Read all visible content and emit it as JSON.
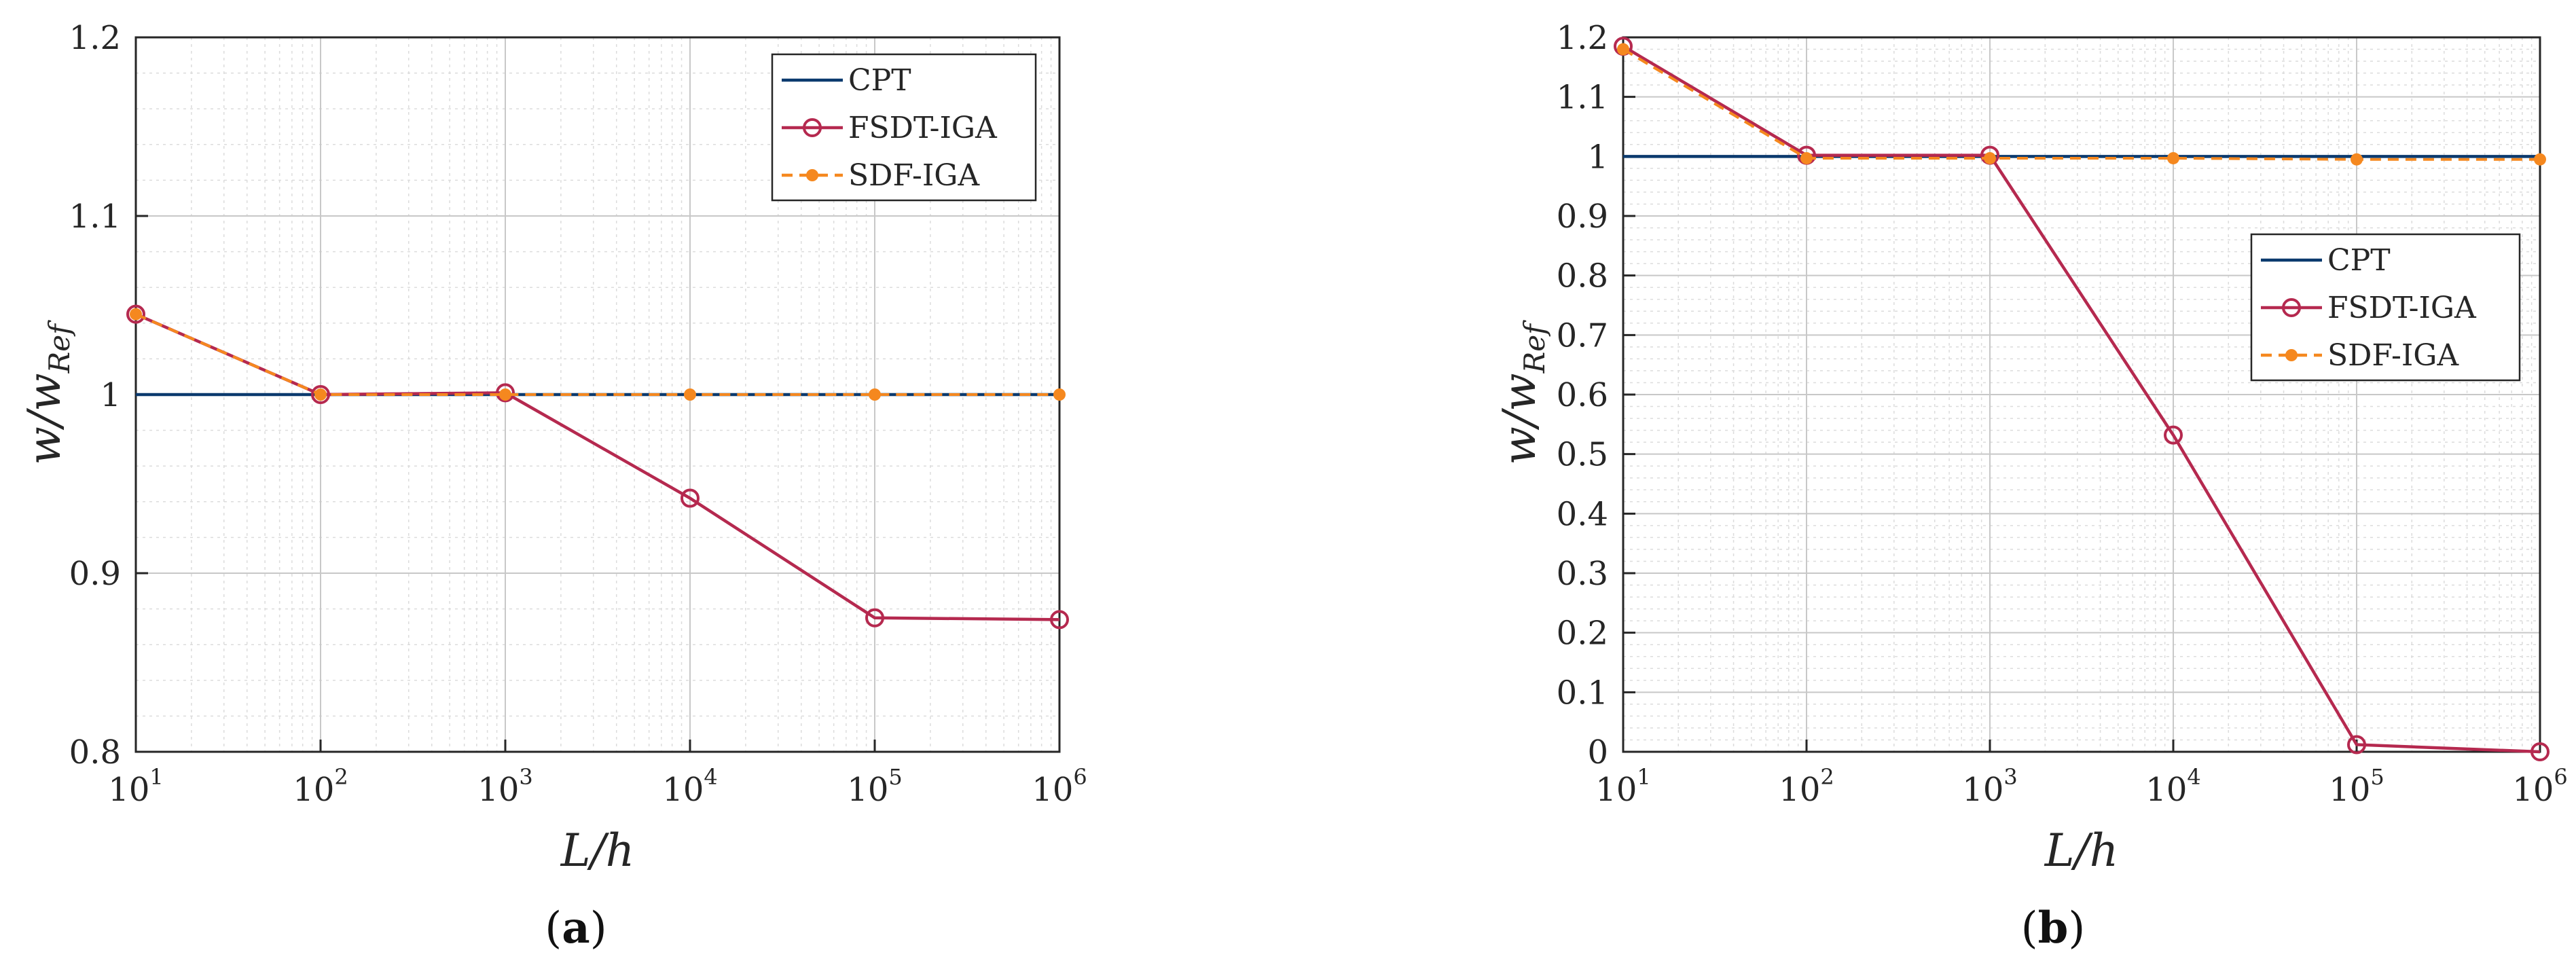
{
  "colors": {
    "cpt": "#0b3a6e",
    "fsdt": "#b5294f",
    "sdf": "#f5881f",
    "grid": "#dcdcdc",
    "axis": "#262626"
  },
  "chart_data": [
    {
      "type": "line",
      "caption_open": "(",
      "caption_letter": "a",
      "caption_close": ")",
      "xlabel": "L/h",
      "ylabel": "w/w",
      "ylabel_sub": "Ref",
      "xscale": "log",
      "xlim_exp": [
        1,
        6
      ],
      "ylim": [
        0.8,
        1.2
      ],
      "yticks": [
        0.8,
        0.9,
        1.0,
        1.1,
        1.2
      ],
      "ytick_labels": [
        "0.8",
        "0.9",
        "1",
        "1.1",
        "1.2"
      ],
      "xtick_exps": [
        "1",
        "2",
        "3",
        "4",
        "5",
        "6"
      ],
      "xtick_base": "10",
      "grid": true,
      "legend_position": "top-right",
      "series": [
        {
          "name": "CPT",
          "key": "cpt",
          "x_exp": [
            1,
            2,
            3,
            4,
            5,
            6
          ],
          "values": [
            1.0,
            1.0,
            1.0,
            1.0,
            1.0,
            1.0
          ],
          "marker": "none",
          "dash": false
        },
        {
          "name": "FSDT-IGA",
          "key": "fsdt",
          "x_exp": [
            1,
            2,
            3,
            4,
            5,
            6
          ],
          "values": [
            1.045,
            1.0,
            1.001,
            0.942,
            0.875,
            0.874
          ],
          "marker": "open-circle",
          "dash": false
        },
        {
          "name": "SDF-IGA",
          "key": "sdf",
          "x_exp": [
            1,
            2,
            3,
            4,
            5,
            6
          ],
          "values": [
            1.045,
            1.0,
            1.0,
            1.0,
            1.0,
            1.0
          ],
          "marker": "filled-circle",
          "dash": true
        }
      ]
    },
    {
      "type": "line",
      "caption_open": "(",
      "caption_letter": "b",
      "caption_close": ")",
      "xlabel": "L/h",
      "ylabel": "w/w",
      "ylabel_sub": "Ref",
      "xscale": "log",
      "xlim_exp": [
        1,
        6
      ],
      "ylim": [
        0,
        1.2
      ],
      "yticks": [
        0,
        0.1,
        0.2,
        0.3,
        0.4,
        0.5,
        0.6,
        0.7,
        0.8,
        0.9,
        1.0,
        1.1,
        1.2
      ],
      "ytick_labels": [
        "0",
        "0.1",
        "0.2",
        "0.3",
        "0.4",
        "0.5",
        "0.6",
        "0.7",
        "0.8",
        "0.9",
        "1",
        "1.1",
        "1.2"
      ],
      "xtick_exps": [
        "1",
        "2",
        "3",
        "4",
        "5",
        "6"
      ],
      "xtick_base": "10",
      "grid": true,
      "legend_position": "center-right",
      "series": [
        {
          "name": "CPT",
          "key": "cpt",
          "x_exp": [
            1,
            2,
            3,
            4,
            5,
            6
          ],
          "values": [
            1.0,
            1.0,
            1.0,
            1.0,
            1.0,
            1.0
          ],
          "marker": "none",
          "dash": false
        },
        {
          "name": "FSDT-IGA",
          "key": "fsdt",
          "x_exp": [
            1,
            2,
            3,
            4,
            5,
            6
          ],
          "values": [
            1.185,
            1.002,
            1.002,
            0.532,
            0.012,
            0.0
          ],
          "marker": "open-circle",
          "dash": false
        },
        {
          "name": "SDF-IGA",
          "key": "sdf",
          "x_exp": [
            1,
            2,
            3,
            4,
            5,
            6
          ],
          "values": [
            1.18,
            0.997,
            0.997,
            0.997,
            0.995,
            0.995
          ],
          "marker": "filled-circle",
          "dash": true
        }
      ]
    }
  ]
}
